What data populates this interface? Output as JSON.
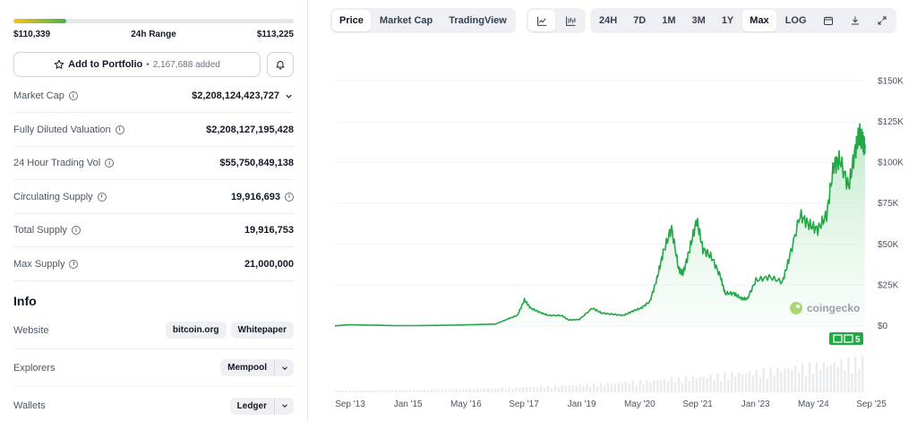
{
  "range": {
    "low": "$110,339",
    "label": "24h Range",
    "high": "$113,225",
    "fill_fraction": 0.19
  },
  "portfolio": {
    "label": "Add to Portfolio",
    "count": "2,167,688 added"
  },
  "stats": [
    {
      "label": "Market Cap",
      "value": "$2,208,124,423,727",
      "has_info": true,
      "trailing": "chevron"
    },
    {
      "label": "Fully Diluted Valuation",
      "value": "$2,208,127,195,428",
      "has_info": true,
      "trailing": ""
    },
    {
      "label": "24 Hour Trading Vol",
      "value": "$55,750,849,138",
      "has_info": true,
      "trailing": ""
    },
    {
      "label": "Circulating Supply",
      "value": "19,916,693",
      "has_info": true,
      "trailing": "info"
    },
    {
      "label": "Total Supply",
      "value": "19,916,753",
      "has_info": true,
      "trailing": ""
    },
    {
      "label": "Max Supply",
      "value": "21,000,000",
      "has_info": true,
      "trailing": ""
    }
  ],
  "info": {
    "title": "Info",
    "website_label": "Website",
    "website_links": [
      "bitcoin.org",
      "Whitepaper"
    ],
    "explorers_label": "Explorers",
    "explorer": "Mempool",
    "wallets_label": "Wallets",
    "wallet": "Ledger"
  },
  "toolbar": {
    "views": [
      "Price",
      "Market Cap",
      "TradingView"
    ],
    "active_view": "Price",
    "ranges": [
      "24H",
      "7D",
      "1M",
      "3M",
      "1Y",
      "Max",
      "LOG"
    ],
    "active_range": "Max"
  },
  "watermark": "coingecko",
  "badge_count": "5",
  "colors": {
    "line": "#22a845",
    "fill_top": "#b6e8c2",
    "accent_green": "#4caf50"
  },
  "chart_data": {
    "type": "area",
    "x_ticks": [
      "Sep '13",
      "Jan '15",
      "May '16",
      "Sep '17",
      "Jan '19",
      "May '20",
      "Sep '21",
      "Jan '23",
      "May '24",
      "Sep '25"
    ],
    "y_ticks": [
      "$0",
      "$25K",
      "$50K",
      "$75K",
      "$100K",
      "$125K",
      "$150K"
    ],
    "ylim": [
      0,
      160000
    ],
    "x_unit": "years",
    "xlim": [
      2013.67,
      2025.67
    ],
    "series": [
      {
        "x": [
          2013.67,
          2014.0,
          2014.5,
          2015.0,
          2015.5,
          2016.0,
          2016.5,
          2017.0,
          2017.3,
          2017.6,
          2017.8,
          2017.96,
          2018.1,
          2018.3,
          2018.5,
          2018.8,
          2018.96,
          2019.2,
          2019.5,
          2019.7,
          2019.96,
          2020.2,
          2020.4,
          2020.6,
          2020.8,
          2020.96,
          2021.1,
          2021.29,
          2021.45,
          2021.55,
          2021.7,
          2021.86,
          2022.0,
          2022.2,
          2022.4,
          2022.5,
          2022.7,
          2022.86,
          2023.0,
          2023.2,
          2023.5,
          2023.8,
          2023.96,
          2024.2,
          2024.4,
          2024.6,
          2024.8,
          2024.96,
          2025.1,
          2025.3,
          2025.45,
          2025.55,
          2025.62,
          2025.67
        ],
        "y": [
          130,
          800,
          600,
          280,
          270,
          430,
          650,
          1000,
          1200,
          4500,
          6500,
          16000,
          11000,
          8500,
          6500,
          6500,
          3700,
          4000,
          11000,
          8000,
          7200,
          6500,
          9000,
          11000,
          15000,
          29000,
          45000,
          60000,
          35000,
          32000,
          47000,
          65000,
          47000,
          42000,
          30000,
          20000,
          20000,
          17000,
          16500,
          28000,
          30000,
          27000,
          42000,
          68000,
          62000,
          59000,
          68000,
          98000,
          102000,
          85000,
          108000,
          118000,
          112000,
          111000
        ]
      }
    ]
  }
}
